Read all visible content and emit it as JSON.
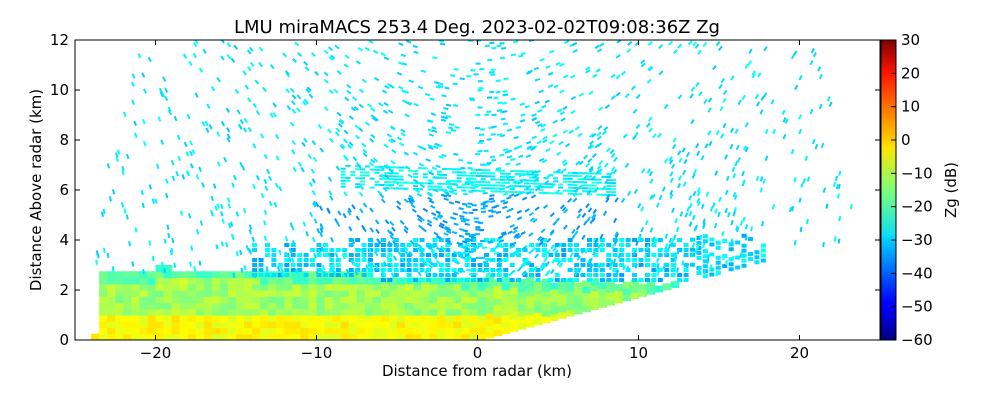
{
  "chart_data": {
    "type": "heatmap",
    "title": "LMU miraMACS 253.4 Deg. 2023-02-02T09:08:36Z  Zg",
    "xlabel": "Distance from radar (km)",
    "ylabel": "Distance Above radar  (km)",
    "xlim": [
      -25,
      25
    ],
    "ylim": [
      0,
      12
    ],
    "x_ticks": [
      -20,
      -10,
      0,
      10,
      20
    ],
    "y_ticks": [
      0,
      2,
      4,
      6,
      8,
      10,
      12
    ],
    "colorbar": {
      "label": "Zg (dB)",
      "range": [
        -60,
        30
      ],
      "ticks": [
        30,
        20,
        10,
        0,
        -10,
        -20,
        -30,
        -40,
        -50,
        -60
      ],
      "colormap": "jet"
    },
    "scan": {
      "azimuth_deg": 253.4,
      "max_range_km": 24
    },
    "layers": [
      {
        "name": "noise",
        "base_km": 0,
        "top_km": 12,
        "zg_db": -28
      },
      {
        "name": "upper-cloud-band",
        "center_x_km": 0,
        "half_width_km": 8.5,
        "center_km": 6.45,
        "thickness_km": 0.45,
        "zg_db": -26
      },
      {
        "name": "mid-cloud-layer",
        "x_range_km": [
          -14,
          18
        ],
        "base_km": 2.5,
        "top_km": 4.1,
        "zg_db": -30
      },
      {
        "name": "low-cloud-layer",
        "x_range_km": [
          -24,
          18
        ],
        "base_km": 0,
        "top_km": 2.6,
        "zg_db": -12
      },
      {
        "name": "near-surface-core",
        "x_range_km": [
          -24,
          8
        ],
        "base_km": 0,
        "top_km": 0.9,
        "zg_db": -4
      }
    ],
    "grid": false,
    "legend": "none"
  }
}
